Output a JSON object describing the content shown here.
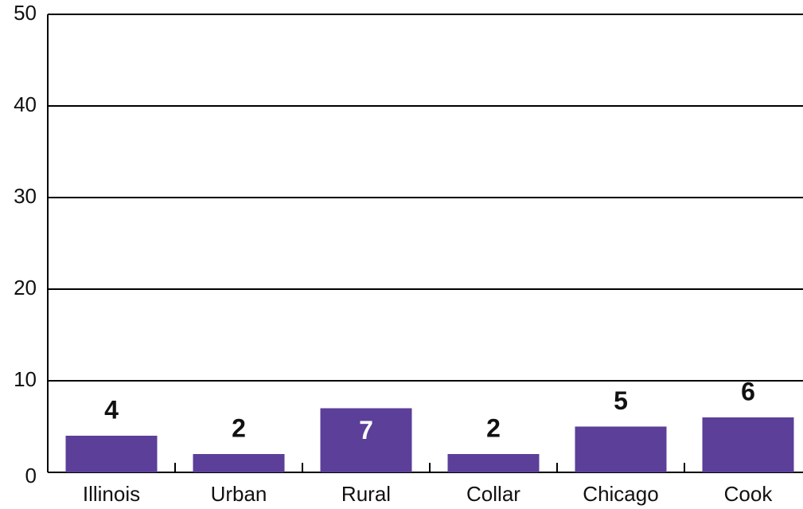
{
  "chart_data": {
    "type": "bar",
    "categories": [
      "Illinois",
      "Urban",
      "Rural",
      "Collar",
      "Chicago",
      "Cook"
    ],
    "values": [
      4,
      2,
      7,
      2,
      5,
      6
    ],
    "color": "#5b3f99",
    "ylim": [
      0,
      50
    ],
    "yticks": [
      0,
      10,
      20,
      30,
      40,
      50
    ],
    "grid": true
  }
}
